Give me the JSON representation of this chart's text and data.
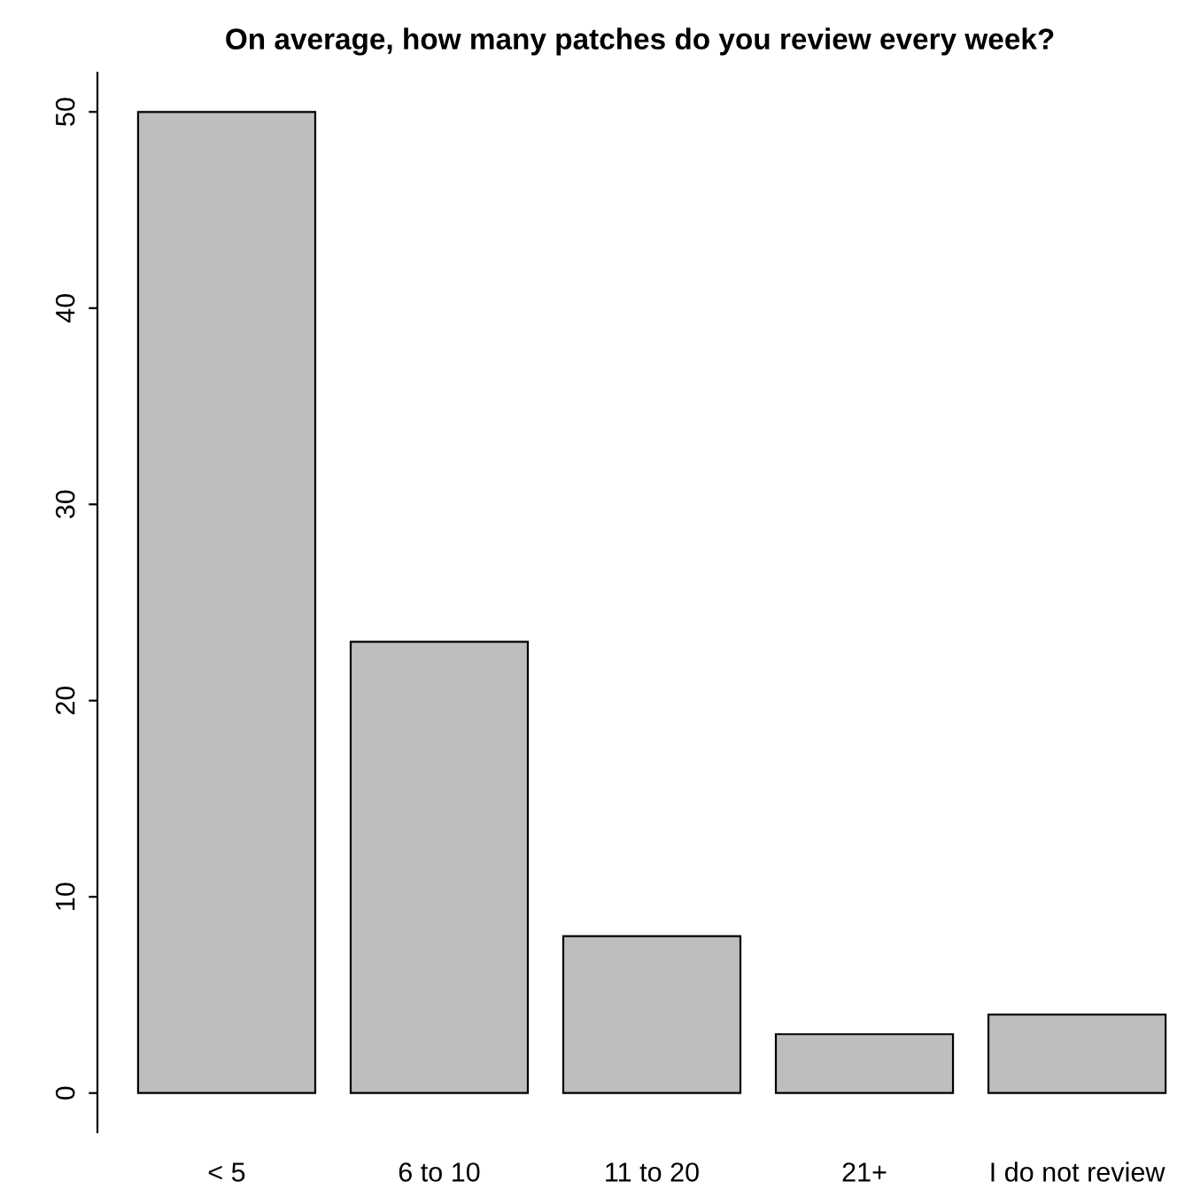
{
  "chart_data": {
    "type": "bar",
    "title": "On average, how many patches do you review every week?",
    "categories": [
      "< 5",
      "6 to 10",
      "11 to 20",
      "21+",
      "I do not review"
    ],
    "values": [
      50,
      23,
      8,
      3,
      4
    ],
    "color": "#bebebe",
    "ylim": [
      -2,
      52
    ],
    "yticks": [
      0,
      10,
      20,
      30,
      40,
      50
    ],
    "grid": false,
    "legend": false
  }
}
